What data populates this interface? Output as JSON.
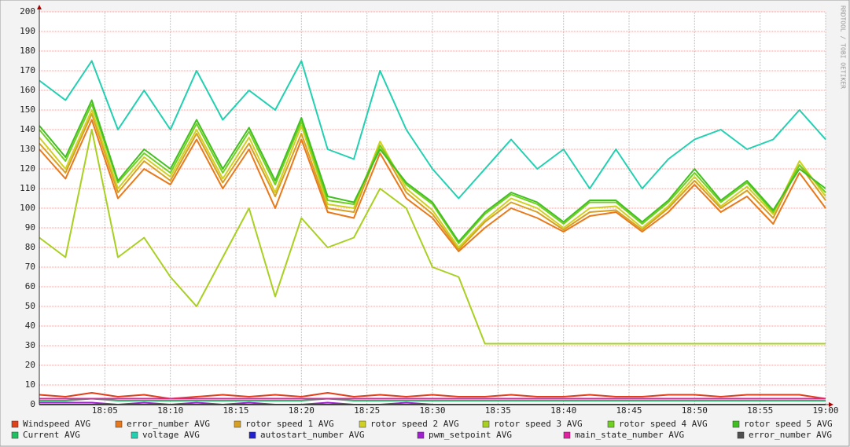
{
  "chart_data": {
    "type": "line",
    "watermark": "RRDTOOL / TOBI OETIKER",
    "x": [
      "18:00",
      "18:02",
      "18:04",
      "18:06",
      "18:08",
      "18:10",
      "18:12",
      "18:14",
      "18:16",
      "18:18",
      "18:20",
      "18:22",
      "18:24",
      "18:26",
      "18:28",
      "18:30",
      "18:32",
      "18:34",
      "18:36",
      "18:38",
      "18:40",
      "18:42",
      "18:44",
      "18:46",
      "18:48",
      "18:50",
      "18:52",
      "18:54",
      "18:56",
      "18:58",
      "19:00"
    ],
    "xlim": [
      "18:00",
      "19:00"
    ],
    "xticks": [
      "18:05",
      "18:10",
      "18:15",
      "18:20",
      "18:25",
      "18:30",
      "18:35",
      "18:40",
      "18:45",
      "18:50",
      "18:55",
      "19:00"
    ],
    "ylim": [
      0,
      200
    ],
    "yticks": [
      0,
      10,
      20,
      30,
      40,
      50,
      60,
      70,
      80,
      90,
      100,
      110,
      120,
      130,
      140,
      150,
      160,
      170,
      180,
      190,
      200
    ],
    "grid": true,
    "series": [
      {
        "name": "Windspeed AVG",
        "color": "#e0401a",
        "values": [
          5,
          4,
          6,
          4,
          5,
          3,
          4,
          5,
          4,
          5,
          4,
          6,
          4,
          5,
          4,
          5,
          4,
          4,
          5,
          4,
          4,
          5,
          4,
          4,
          5,
          5,
          4,
          5,
          5,
          5,
          3
        ]
      },
      {
        "name": "error_number AVG",
        "color": "#e8781a",
        "values": [
          130,
          115,
          145,
          105,
          120,
          112,
          135,
          110,
          130,
          100,
          135,
          98,
          95,
          128,
          105,
          95,
          78,
          90,
          100,
          95,
          88,
          96,
          98,
          88,
          98,
          112,
          98,
          106,
          92,
          118,
          100
        ]
      },
      {
        "name": "rotor speed 1 AVG",
        "color": "#d8a020",
        "values": [
          133,
          118,
          148,
          108,
          124,
          114,
          138,
          113,
          133,
          106,
          138,
          100,
          98,
          132,
          108,
          97,
          79,
          93,
          103,
          98,
          89,
          98,
          99,
          89,
          100,
          114,
          100,
          109,
          95,
          122,
          104
        ]
      },
      {
        "name": "rotor speed 2 AVG",
        "color": "#d0d020",
        "values": [
          136,
          120,
          150,
          110,
          126,
          116,
          140,
          115,
          136,
          108,
          142,
          102,
          100,
          134,
          110,
          99,
          80,
          94,
          105,
          100,
          90,
          100,
          101,
          90,
          101,
          116,
          101,
          111,
          97,
          124,
          106
        ]
      },
      {
        "name": "rotor speed 3 AVG",
        "color": "#a8d020",
        "values": [
          85,
          75,
          140,
          75,
          85,
          65,
          50,
          75,
          100,
          55,
          95,
          80,
          85,
          110,
          100,
          70,
          65,
          31,
          31,
          31,
          31,
          31,
          31,
          31,
          31,
          31,
          31,
          31,
          31,
          31,
          31
        ]
      },
      {
        "name": "rotor speed 4 AVG",
        "color": "#70d020",
        "values": [
          140,
          124,
          153,
          113,
          128,
          118,
          143,
          118,
          139,
          112,
          144,
          104,
          102,
          132,
          112,
          102,
          82,
          97,
          107,
          102,
          92,
          103,
          103,
          92,
          103,
          118,
          103,
          113,
          98,
          122,
          108
        ]
      },
      {
        "name": "rotor speed 5 AVG",
        "color": "#40c020",
        "values": [
          142,
          126,
          155,
          114,
          130,
          120,
          145,
          120,
          141,
          114,
          146,
          106,
          103,
          130,
          113,
          103,
          83,
          98,
          108,
          103,
          93,
          104,
          104,
          93,
          104,
          120,
          104,
          114,
          99,
          120,
          110
        ]
      },
      {
        "name": "Current AVG",
        "color": "#20c060",
        "values": [
          2,
          2,
          3,
          2,
          2,
          2,
          2,
          2,
          2,
          2,
          2,
          3,
          2,
          2,
          2,
          2,
          2,
          2,
          2,
          2,
          2,
          2,
          2,
          2,
          2,
          2,
          2,
          2,
          2,
          2,
          2
        ]
      },
      {
        "name": "voltage AVG",
        "color": "#20d0b0",
        "values": [
          165,
          155,
          175,
          140,
          160,
          140,
          170,
          145,
          160,
          150,
          175,
          130,
          125,
          170,
          140,
          120,
          105,
          120,
          135,
          120,
          130,
          110,
          130,
          110,
          125,
          135,
          140,
          130,
          135,
          150,
          135
        ]
      },
      {
        "name": "autostart_number AVG",
        "color": "#2020d0",
        "values": [
          0,
          0,
          0,
          0,
          0,
          0,
          0,
          0,
          0,
          0,
          0,
          0,
          0,
          0,
          0,
          0,
          0,
          0,
          0,
          0,
          0,
          0,
          0,
          0,
          0,
          0,
          0,
          0,
          0,
          0,
          0
        ]
      },
      {
        "name": "pwm_setpoint AVG",
        "color": "#a020d0",
        "values": [
          1,
          1,
          1,
          0,
          1,
          0,
          1,
          0,
          1,
          0,
          0,
          1,
          0,
          0,
          1,
          0,
          0,
          0,
          0,
          0,
          0,
          0,
          0,
          0,
          0,
          0,
          0,
          0,
          0,
          0,
          0
        ]
      },
      {
        "name": "main_state_number AVG",
        "color": "#e020a0",
        "values": [
          3,
          3,
          3,
          3,
          3,
          3,
          3,
          3,
          3,
          3,
          3,
          3,
          3,
          3,
          3,
          3,
          3,
          3,
          3,
          3,
          3,
          3,
          3,
          3,
          3,
          3,
          3,
          3,
          3,
          3,
          3
        ]
      },
      {
        "name": "error_number AVG",
        "color": "#505050",
        "values": [
          0,
          0,
          0,
          0,
          0,
          0,
          0,
          0,
          0,
          0,
          0,
          0,
          0,
          0,
          0,
          0,
          0,
          0,
          0,
          0,
          0,
          0,
          0,
          0,
          0,
          0,
          0,
          0,
          0,
          0,
          0
        ]
      }
    ]
  }
}
